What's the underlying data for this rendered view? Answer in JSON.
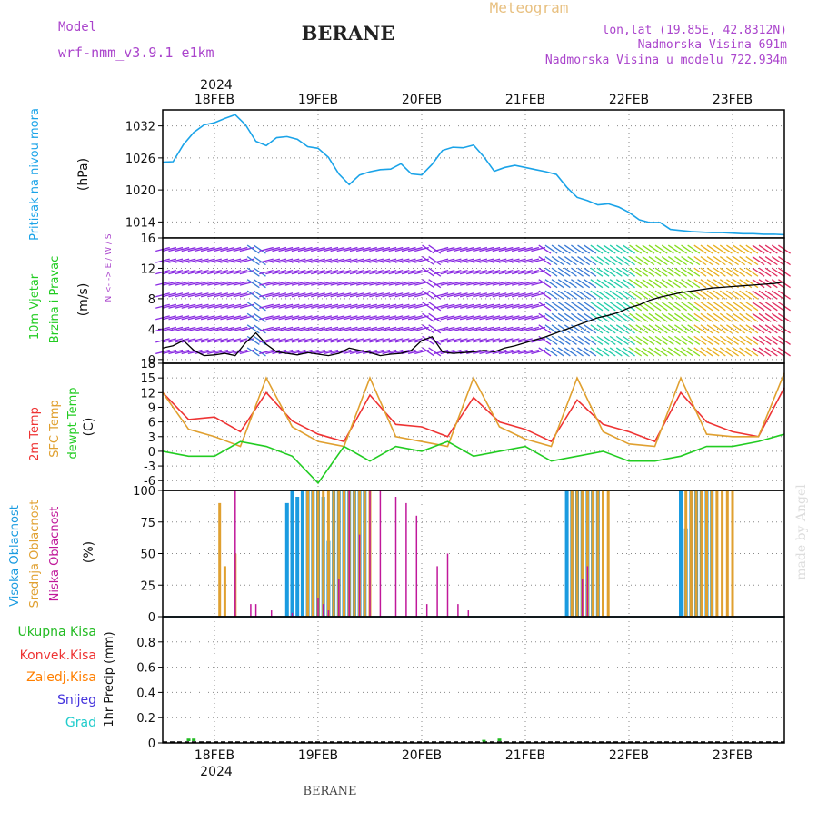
{
  "header": {
    "model_label": "Model",
    "model_name": "wrf-nmm_v3.9.1 e1km",
    "station": "BERANE",
    "product": "Meteogram",
    "coords": "lon,lat (19.85E, 42.8312N)",
    "altitude": "Nadmorska Visina 691m",
    "model_altitude": "Nadmorska Visina u modelu 722.934m"
  },
  "footer": {
    "station": "BERANE",
    "credit": "made by Angel"
  },
  "colors": {
    "pressure": "#1aa3e8",
    "temp2m": "#ee3333",
    "sfc_temp": "#e0a030",
    "dewpoint": "#22cc22",
    "high_cloud": "#1a9be0",
    "mid_cloud": "#e0a030",
    "low_cloud": "#c0189a",
    "total_precip": "#22bb22",
    "conv_precip": "#ee3333",
    "frozen_precip": "#ff7f00",
    "snow": "#4433dd",
    "hail": "#22cccc",
    "wind_title": "#22cc22",
    "model_text": "#aa44cc",
    "product_text": "#e8c080"
  },
  "chart_data": [
    {
      "type": "line",
      "panel": "pressure",
      "ylabels": [
        "Pritisak na nivou mora",
        "(hPa)"
      ],
      "ylim": [
        1011,
        1035
      ],
      "yticks": [
        "1014",
        "1020",
        "1026",
        "1032"
      ],
      "x_unit": "days since 2024-02-17 00:00",
      "xlim": [
        0.5,
        6.5
      ],
      "x_ticks": [
        "18FEB",
        "19FEB",
        "20FEB",
        "21FEB",
        "22FEB",
        "23FEB"
      ],
      "x_year": "2024",
      "series": [
        {
          "name": "Pritisak",
          "x": [
            0.5,
            0.6,
            0.7,
            0.8,
            0.9,
            1.0,
            1.1,
            1.2,
            1.3,
            1.4,
            1.5,
            1.6,
            1.7,
            1.8,
            1.9,
            2.0,
            2.1,
            2.2,
            2.3,
            2.4,
            2.5,
            2.6,
            2.7,
            2.8,
            2.9,
            3.0,
            3.1,
            3.2,
            3.3,
            3.4,
            3.5,
            3.6,
            3.7,
            3.8,
            3.9,
            4.0,
            4.1,
            4.2,
            4.3,
            4.4,
            4.5,
            4.6,
            4.7,
            4.8,
            4.9,
            5.0,
            5.1,
            5.2,
            5.3,
            5.4,
            5.5,
            5.6,
            5.7,
            5.8,
            5.9,
            6.0,
            6.1,
            6.2,
            6.3,
            6.4,
            6.5
          ],
          "y": [
            1025.2,
            1025.3,
            1028.5,
            1030.8,
            1032.2,
            1032.6,
            1033.4,
            1034.1,
            1032.2,
            1029.1,
            1028.3,
            1029.8,
            1030.0,
            1029.5,
            1028.1,
            1027.8,
            1026.1,
            1023.0,
            1021.0,
            1022.8,
            1023.4,
            1023.8,
            1023.9,
            1024.9,
            1023.0,
            1022.8,
            1024.8,
            1027.4,
            1028.0,
            1027.9,
            1028.4,
            1026.2,
            1023.5,
            1024.2,
            1024.6,
            1024.2,
            1023.8,
            1023.4,
            1022.9,
            1020.5,
            1018.6,
            1018.0,
            1017.2,
            1017.4,
            1016.8,
            1015.8,
            1014.4,
            1013.9,
            1013.9,
            1012.6,
            1012.4,
            1012.2,
            1012.1,
            1012.0,
            1012.0,
            1011.9,
            1011.8,
            1011.8,
            1011.7,
            1011.7,
            1011.6
          ]
        }
      ]
    },
    {
      "type": "scatter",
      "panel": "wind",
      "ylabels": [
        "10m Vjetar",
        "Brzina i Pravac",
        "(m/s)"
      ],
      "ylim": [
        -0.5,
        16
      ],
      "yticks": [
        "0",
        "4",
        "8",
        "12",
        "16"
      ],
      "legend": "N <-|-> E / W / S",
      "note": "wind barbs colored by speed; speed line shown",
      "series": [
        {
          "name": "Brzina",
          "x": [
            0.5,
            0.6,
            0.7,
            0.8,
            0.9,
            1.0,
            1.1,
            1.2,
            1.3,
            1.4,
            1.5,
            1.6,
            1.7,
            1.8,
            1.9,
            2.0,
            2.1,
            2.2,
            2.3,
            2.4,
            2.5,
            2.6,
            2.7,
            2.8,
            2.9,
            3.0,
            3.1,
            3.2,
            3.3,
            3.4,
            3.5,
            3.6,
            3.7,
            3.8,
            3.9,
            4.0,
            4.1,
            4.2,
            4.3,
            4.4,
            4.5,
            4.6,
            4.7,
            4.8,
            4.9,
            5.0,
            5.1,
            5.2,
            5.3,
            5.4,
            5.5,
            5.6,
            5.7,
            5.8,
            5.9,
            6.0,
            6.1,
            6.2,
            6.3,
            6.4,
            6.5
          ],
          "y": [
            1.5,
            1.8,
            2.5,
            1.2,
            0.5,
            0.6,
            0.8,
            0.5,
            2.2,
            3.5,
            2.0,
            1.0,
            0.8,
            0.6,
            0.9,
            0.7,
            0.5,
            0.8,
            1.5,
            1.2,
            0.9,
            0.5,
            0.7,
            0.8,
            1.2,
            2.5,
            3.0,
            1.0,
            0.8,
            0.9,
            1.0,
            1.2,
            1.0,
            1.5,
            1.8,
            2.2,
            2.6,
            3.0,
            3.5,
            4.0,
            4.5,
            5.0,
            5.5,
            5.8,
            6.2,
            6.8,
            7.2,
            7.8,
            8.2,
            8.5,
            8.8,
            9.0,
            9.2,
            9.4,
            9.5,
            9.6,
            9.7,
            9.8,
            9.9,
            10.0,
            10.2
          ]
        }
      ]
    },
    {
      "type": "line",
      "panel": "temperature",
      "ylabels": [
        "2m Temp",
        "SFC Temp",
        "dewpt Temp",
        "(C)"
      ],
      "ylim": [
        -8,
        18
      ],
      "yticks": [
        "-6",
        "-3",
        "0",
        "3",
        "6",
        "9",
        "12",
        "15",
        "18"
      ],
      "series": [
        {
          "name": "2m Temp",
          "x": [
            0.0,
            0.25,
            0.5,
            0.75,
            1.0,
            1.25,
            1.5,
            1.75,
            2.0,
            2.25,
            2.5,
            2.75,
            3.0,
            3.25,
            3.5,
            3.75,
            4.0,
            4.25,
            4.5,
            4.75,
            5.0,
            5.25,
            5.5,
            5.75,
            6.0
          ],
          "y": [
            12,
            6.5,
            7,
            4,
            12,
            6.2,
            3.5,
            2,
            11.5,
            5.5,
            5,
            3,
            11,
            6,
            4.5,
            2,
            10.5,
            5.5,
            4,
            2,
            12,
            6,
            4,
            3,
            13
          ]
        },
        {
          "name": "SFC Temp",
          "x": [
            0.0,
            0.25,
            0.5,
            0.75,
            1.0,
            1.25,
            1.5,
            1.75,
            2.0,
            2.25,
            2.5,
            2.75,
            3.0,
            3.25,
            3.5,
            3.75,
            4.0,
            4.25,
            4.5,
            4.75,
            5.0,
            5.25,
            5.5,
            5.75,
            6.0
          ],
          "y": [
            12,
            4.5,
            3,
            1,
            15,
            5,
            2,
            1,
            15,
            3,
            2,
            1,
            15,
            5,
            2.5,
            1,
            15,
            4,
            1.5,
            1,
            15,
            3.5,
            3,
            3,
            16
          ]
        },
        {
          "name": "dewpt Temp",
          "x": [
            0.0,
            0.25,
            0.5,
            0.75,
            1.0,
            1.25,
            1.5,
            1.75,
            2.0,
            2.25,
            2.5,
            2.75,
            3.0,
            3.25,
            3.5,
            3.75,
            4.0,
            4.25,
            4.5,
            4.75,
            5.0,
            5.25,
            5.5,
            5.75,
            6.0
          ],
          "y": [
            0,
            -1,
            -1,
            2,
            1,
            -1,
            -6.5,
            1,
            -2,
            1,
            0,
            2,
            -1,
            0,
            1,
            -2,
            -1,
            0,
            -2,
            -2,
            -1,
            1,
            1,
            2,
            3.5
          ]
        }
      ]
    },
    {
      "type": "bar",
      "panel": "clouds",
      "ylabels": [
        "Visoka Oblacnost",
        "Srednja Oblacnost",
        "Niska Oblacnost",
        "(%)"
      ],
      "ylim": [
        0,
        100
      ],
      "yticks": [
        "0",
        "25",
        "50",
        "75",
        "100"
      ],
      "series": [
        {
          "name": "Visoka Oblacnost",
          "x": [
            1.7,
            1.75,
            1.8,
            1.85,
            1.9,
            1.95,
            2.0,
            2.05,
            2.1,
            2.15,
            2.2,
            2.25,
            2.3,
            2.35,
            2.4,
            2.45,
            4.4,
            4.45,
            4.5,
            4.55,
            4.6,
            4.65,
            4.7,
            5.5,
            5.55,
            5.6,
            5.65,
            5.7,
            5.75,
            5.8
          ],
          "y": [
            90,
            100,
            95,
            100,
            100,
            100,
            100,
            95,
            60,
            100,
            100,
            100,
            100,
            100,
            100,
            100,
            100,
            100,
            100,
            100,
            100,
            100,
            100,
            100,
            70,
            100,
            100,
            100,
            100,
            100
          ]
        },
        {
          "name": "Srednja Oblacnost",
          "x": [
            1.05,
            1.1,
            1.2,
            1.9,
            1.95,
            2.0,
            2.05,
            2.1,
            2.15,
            2.2,
            2.25,
            2.3,
            2.35,
            2.4,
            2.45,
            2.5,
            4.45,
            4.5,
            4.55,
            4.6,
            4.65,
            4.7,
            4.75,
            4.8,
            5.55,
            5.6,
            5.65,
            5.7,
            5.75,
            5.8,
            5.85,
            5.9,
            5.95,
            6.0
          ],
          "y": [
            90,
            40,
            50,
            100,
            100,
            100,
            100,
            100,
            100,
            100,
            100,
            100,
            100,
            100,
            100,
            100,
            100,
            100,
            100,
            100,
            100,
            100,
            100,
            100,
            100,
            100,
            100,
            100,
            100,
            100,
            100,
            100,
            100,
            100
          ]
        },
        {
          "name": "Niska Oblacnost",
          "x": [
            1.2,
            1.35,
            1.4,
            1.55,
            1.75,
            2.0,
            2.05,
            2.1,
            2.2,
            2.3,
            2.4,
            2.5,
            2.6,
            2.75,
            2.85,
            2.95,
            3.05,
            3.15,
            3.25,
            3.35,
            3.45,
            4.55,
            4.6
          ],
          "y": [
            100,
            10,
            10,
            5,
            3,
            15,
            10,
            5,
            30,
            100,
            65,
            100,
            100,
            95,
            90,
            80,
            10,
            40,
            50,
            10,
            5,
            30,
            40
          ]
        }
      ]
    },
    {
      "type": "bar",
      "panel": "precipitation",
      "ylabels": [
        "Ukupna Kisa",
        "Konvek.Kisa",
        "Zaledj.Kisa",
        "Snijeg",
        "Grad",
        "1hr Precip (mm)"
      ],
      "ylim": [
        0,
        1.0
      ],
      "yticks": [
        "0",
        "0.2",
        "0.4",
        "0.6",
        "0.8"
      ],
      "series": [
        {
          "name": "Ukupna Kisa",
          "x": [
            0.75,
            0.8,
            3.6,
            3.75
          ],
          "y": [
            0.02,
            0.02,
            0.01,
            0.02
          ]
        }
      ]
    }
  ]
}
